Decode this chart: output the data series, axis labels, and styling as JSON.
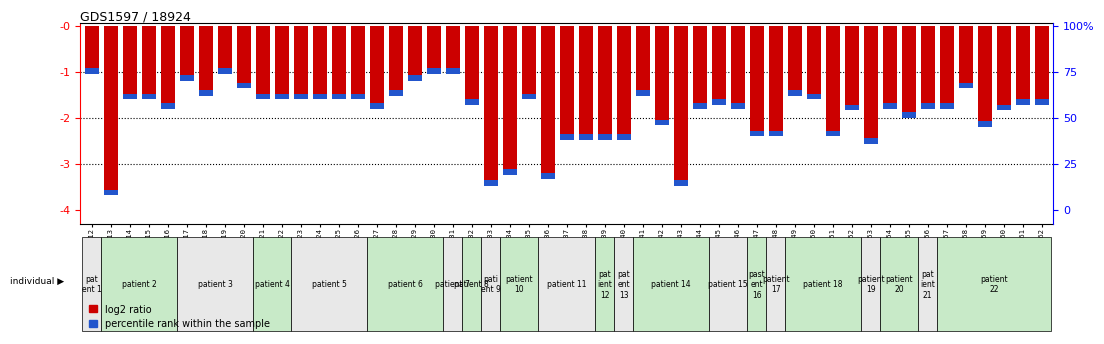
{
  "title": "GDS1597 / 18924",
  "gsm_labels": [
    "GSM38712",
    "GSM38713",
    "GSM38714",
    "GSM38715",
    "GSM38716",
    "GSM38717",
    "GSM38718",
    "GSM38719",
    "GSM38720",
    "GSM38721",
    "GSM38722",
    "GSM38723",
    "GSM38724",
    "GSM38725",
    "GSM38726",
    "GSM38727",
    "GSM38728",
    "GSM38729",
    "GSM38730",
    "GSM38731",
    "GSM38732",
    "GSM38733",
    "GSM38734",
    "GSM38735",
    "GSM38736",
    "GSM38737",
    "GSM38738",
    "GSM38739",
    "GSM38740",
    "GSM38741",
    "GSM38742",
    "GSM38743",
    "GSM38744",
    "GSM38745",
    "GSM38746",
    "GSM38747",
    "GSM38748",
    "GSM38749",
    "GSM38750",
    "GSM38751",
    "GSM38752",
    "GSM38753",
    "GSM38754",
    "GSM38755",
    "GSM38756",
    "GSM38757",
    "GSM38758",
    "GSM38759",
    "GSM38760",
    "GSM38761",
    "GSM38762"
  ],
  "log2_values": [
    -1.05,
    -3.65,
    -1.6,
    -1.6,
    -1.75,
    -1.15,
    -1.55,
    -1.05,
    -1.35,
    -1.6,
    -1.6,
    -1.6,
    -1.6,
    -1.6,
    -1.6,
    -1.75,
    -1.55,
    -1.15,
    -1.05,
    -1.05,
    -1.7,
    -3.45,
    -3.25,
    -1.6,
    -3.3,
    -2.45,
    -2.45,
    -2.45,
    -2.45,
    -1.55,
    -2.15,
    -3.5,
    -1.75,
    -1.7,
    -1.75,
    -2.35,
    -2.35,
    -1.55,
    -1.6,
    -2.35,
    -1.8,
    -2.55,
    -1.75,
    -2.0,
    -1.75,
    -1.75,
    -1.35,
    -2.2,
    -1.85,
    -1.7,
    -1.7
  ],
  "percentile_values": [
    74,
    8,
    60,
    60,
    55,
    70,
    62,
    74,
    66,
    60,
    60,
    60,
    60,
    60,
    60,
    55,
    62,
    70,
    74,
    74,
    57,
    13,
    19,
    60,
    17,
    38,
    38,
    38,
    38,
    62,
    46,
    13,
    55,
    57,
    55,
    40,
    40,
    62,
    60,
    40,
    54,
    36,
    55,
    50,
    55,
    55,
    66,
    45,
    54,
    57,
    57
  ],
  "ylim_min": -4.3,
  "ylim_max": 0.05,
  "bar_color": "#cc0000",
  "blue_color": "#2255cc",
  "blue_segment_pct": 3,
  "patient_groups": [
    {
      "label": "pat\nent 1",
      "start": 0,
      "end": 1,
      "color": "#e8e8e8"
    },
    {
      "label": "patient 2",
      "start": 1,
      "end": 5,
      "color": "#c8eac8"
    },
    {
      "label": "patient 3",
      "start": 5,
      "end": 9,
      "color": "#e8e8e8"
    },
    {
      "label": "patient 4",
      "start": 9,
      "end": 11,
      "color": "#c8eac8"
    },
    {
      "label": "patient 5",
      "start": 11,
      "end": 15,
      "color": "#e8e8e8"
    },
    {
      "label": "patient 6",
      "start": 15,
      "end": 19,
      "color": "#c8eac8"
    },
    {
      "label": "patient 7",
      "start": 19,
      "end": 20,
      "color": "#e8e8e8"
    },
    {
      "label": "patient 8",
      "start": 20,
      "end": 21,
      "color": "#c8eac8"
    },
    {
      "label": "pati\nent 9",
      "start": 21,
      "end": 22,
      "color": "#e8e8e8"
    },
    {
      "label": "patient\n10",
      "start": 22,
      "end": 24,
      "color": "#c8eac8"
    },
    {
      "label": "patient 11",
      "start": 24,
      "end": 27,
      "color": "#e8e8e8"
    },
    {
      "label": "pat\nient\n12",
      "start": 27,
      "end": 28,
      "color": "#c8eac8"
    },
    {
      "label": "pat\nent\n13",
      "start": 28,
      "end": 29,
      "color": "#e8e8e8"
    },
    {
      "label": "patient 14",
      "start": 29,
      "end": 33,
      "color": "#c8eac8"
    },
    {
      "label": "patient 15",
      "start": 33,
      "end": 35,
      "color": "#e8e8e8"
    },
    {
      "label": "past\nent\n16",
      "start": 35,
      "end": 36,
      "color": "#c8eac8"
    },
    {
      "label": "patient\n17",
      "start": 36,
      "end": 37,
      "color": "#e8e8e8"
    },
    {
      "label": "patient 18",
      "start": 37,
      "end": 41,
      "color": "#c8eac8"
    },
    {
      "label": "patient\n19",
      "start": 41,
      "end": 42,
      "color": "#e8e8e8"
    },
    {
      "label": "patient\n20",
      "start": 42,
      "end": 44,
      "color": "#c8eac8"
    },
    {
      "label": "pat\nient\n21",
      "start": 44,
      "end": 45,
      "color": "#e8e8e8"
    },
    {
      "label": "patient\n22",
      "start": 45,
      "end": 51,
      "color": "#c8eac8"
    }
  ],
  "legend_items": [
    {
      "color": "#cc0000",
      "label": "log2 ratio"
    },
    {
      "color": "#2255cc",
      "label": "percentile rank within the sample"
    }
  ]
}
